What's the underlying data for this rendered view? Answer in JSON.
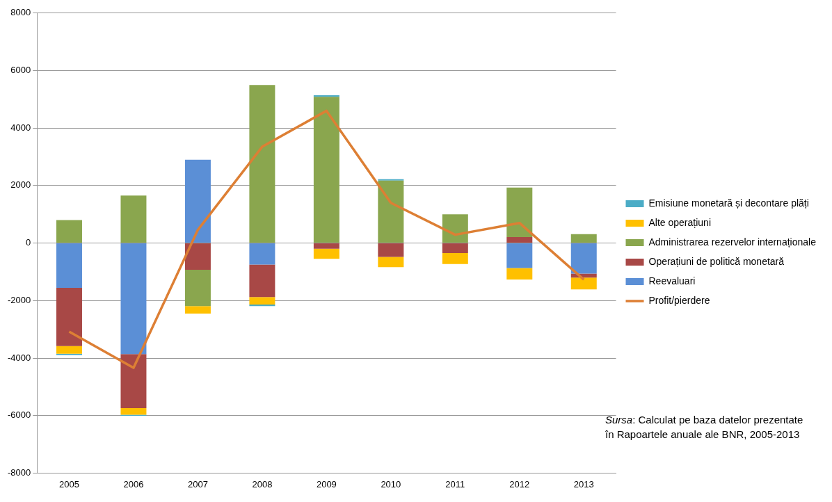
{
  "chart_data": {
    "type": "bar",
    "stacked": true,
    "categories": [
      "2005",
      "2006",
      "2007",
      "2008",
      "2009",
      "2010",
      "2011",
      "2012",
      "2013"
    ],
    "series": [
      {
        "name": "Reevaluari",
        "color": "#5b8fd6",
        "values": [
          -1560,
          -3860,
          2900,
          -750,
          null,
          null,
          null,
          -870,
          -1060
        ]
      },
      {
        "name": "Operațiuni de politică monetară",
        "color": "#a84846",
        "values": [
          -2020,
          -1880,
          -930,
          -1130,
          -200,
          -480,
          -350,
          210,
          -140
        ]
      },
      {
        "name": "Administrarea rezervelor internaționale",
        "color": "#8aa64e",
        "values": [
          800,
          1650,
          -1260,
          5500,
          5090,
          2170,
          1000,
          1720,
          310
        ]
      },
      {
        "name": "Alte operațiuni",
        "color": "#ffc000",
        "values": [
          -270,
          -230,
          -260,
          -260,
          -350,
          -360,
          -380,
          -400,
          -410
        ]
      },
      {
        "name": "Emisiune monetară și decontare plăți",
        "color": "#4bacc6",
        "values": [
          -50,
          -40,
          null,
          -50,
          50,
          50,
          null,
          null,
          null
        ]
      },
      {
        "name": "Profit/pierdere",
        "type": "line",
        "color": "#dd7f34",
        "values": [
          -3080,
          -4340,
          460,
          3350,
          4600,
          1400,
          290,
          700,
          -1270
        ]
      }
    ],
    "ylim": [
      -8000,
      8000
    ],
    "yticks": [
      -8000,
      -6000,
      -4000,
      -2000,
      0,
      2000,
      4000,
      6000,
      8000
    ],
    "grid": "y",
    "legend": "right",
    "marker": "none",
    "annotations": [
      "Sursa: Calculat pe baza datelor prezentate în Rapoartele anuale ale BNR, 2005-2013"
    ]
  }
}
